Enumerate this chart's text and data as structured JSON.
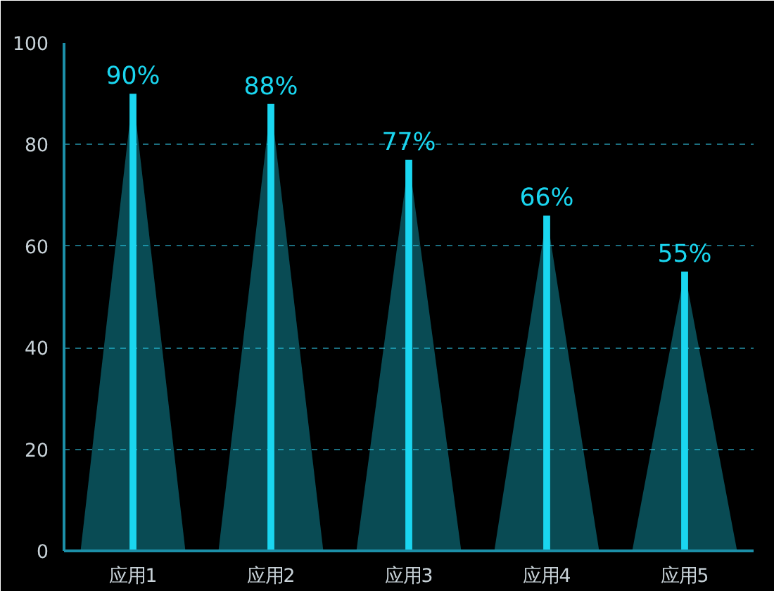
{
  "chart_data": {
    "type": "bar",
    "categories": [
      "应用1",
      "应用2",
      "应用3",
      "应用4",
      "应用5"
    ],
    "values": [
      90,
      88,
      77,
      66,
      55
    ],
    "value_labels": [
      "90%",
      "88%",
      "77%",
      "66%",
      "55%"
    ],
    "color": "#1ad6f0",
    "ylim": [
      0,
      100
    ],
    "yticks": [
      0,
      20,
      40,
      60,
      80,
      100
    ],
    "grid": "y"
  }
}
